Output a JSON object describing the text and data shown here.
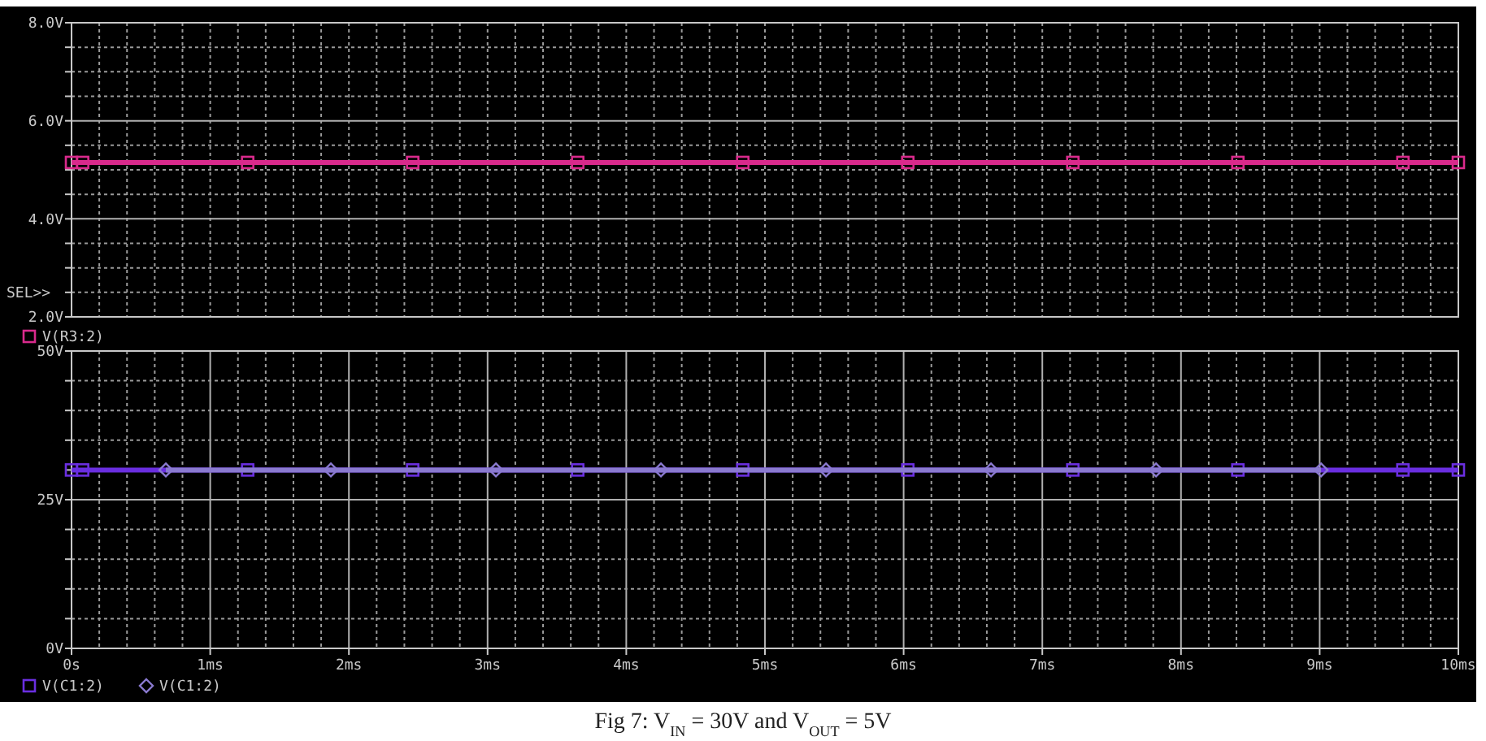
{
  "chart_data": [
    {
      "type": "line",
      "xlim": [
        0,
        10
      ],
      "ylim": [
        2,
        8
      ],
      "tick_labels": "y",
      "grid": true,
      "legend": "bottom left",
      "annotations": [
        "SEL>>"
      ],
      "xticks": [
        {
          "value": 0,
          "label": null
        },
        {
          "value": 0.2,
          "label": null
        },
        {
          "value": 0.4,
          "label": null
        },
        {
          "value": 0.6,
          "label": null
        },
        {
          "value": 0.8,
          "label": null
        },
        {
          "value": 1,
          "label": null
        },
        {
          "value": 1.2,
          "label": null
        },
        {
          "value": 1.4,
          "label": null
        },
        {
          "value": 1.6,
          "label": null
        },
        {
          "value": 1.8,
          "label": null
        },
        {
          "value": 2,
          "label": null
        },
        {
          "value": 2.2,
          "label": null
        },
        {
          "value": 2.4,
          "label": null
        },
        {
          "value": 2.6,
          "label": null
        },
        {
          "value": 2.8,
          "label": null
        },
        {
          "value": 3,
          "label": null
        },
        {
          "value": 3.2,
          "label": null
        },
        {
          "value": 3.4,
          "label": null
        },
        {
          "value": 3.6,
          "label": null
        },
        {
          "value": 3.8,
          "label": null
        },
        {
          "value": 4,
          "label": null
        },
        {
          "value": 4.2,
          "label": null
        },
        {
          "value": 4.4,
          "label": null
        },
        {
          "value": 4.6,
          "label": null
        },
        {
          "value": 4.8,
          "label": null
        },
        {
          "value": 5,
          "label": null
        },
        {
          "value": 5.2,
          "label": null
        },
        {
          "value": 5.4,
          "label": null
        },
        {
          "value": 5.6,
          "label": null
        },
        {
          "value": 5.8,
          "label": null
        },
        {
          "value": 6,
          "label": null
        },
        {
          "value": 6.2,
          "label": null
        },
        {
          "value": 6.4,
          "label": null
        },
        {
          "value": 6.6,
          "label": null
        },
        {
          "value": 6.8,
          "label": null
        },
        {
          "value": 7,
          "label": null
        },
        {
          "value": 7.2,
          "label": null
        },
        {
          "value": 7.4,
          "label": null
        },
        {
          "value": 7.6,
          "label": null
        },
        {
          "value": 7.8,
          "label": null
        },
        {
          "value": 8,
          "label": null
        },
        {
          "value": 8.2,
          "label": null
        },
        {
          "value": 8.4,
          "label": null
        },
        {
          "value": 8.6,
          "label": null
        },
        {
          "value": 8.8,
          "label": null
        },
        {
          "value": 9,
          "label": null
        },
        {
          "value": 9.2,
          "label": null
        },
        {
          "value": 9.4,
          "label": null
        },
        {
          "value": 9.6,
          "label": null
        },
        {
          "value": 9.8,
          "label": null
        },
        {
          "value": 10,
          "label": null
        }
      ],
      "yticks": [
        {
          "value": 2,
          "label": "2.0V"
        },
        {
          "value": 2.5,
          "label": null
        },
        {
          "value": 3,
          "label": null
        },
        {
          "value": 3.5,
          "label": null
        },
        {
          "value": 4,
          "label": "4.0V"
        },
        {
          "value": 4.5,
          "label": null
        },
        {
          "value": 5,
          "label": null
        },
        {
          "value": 5.5,
          "label": null
        },
        {
          "value": 6,
          "label": "6.0V"
        },
        {
          "value": 6.5,
          "label": null
        },
        {
          "value": 7,
          "label": null
        },
        {
          "value": 7.5,
          "label": null
        },
        {
          "value": 8,
          "label": "8.0V"
        }
      ],
      "series": [
        {
          "name": "V(R3:2)",
          "color": "#d92a8c",
          "marker": "square",
          "x": [
            0,
            0.08,
            1.27,
            2.46,
            3.65,
            4.84,
            6.03,
            7.22,
            8.41,
            9.6,
            10
          ],
          "values": [
            5.15,
            5.15,
            5.15,
            5.15,
            5.15,
            5.15,
            5.15,
            5.15,
            5.15,
            5.15,
            5.15
          ]
        }
      ]
    },
    {
      "type": "line",
      "xlim": [
        0,
        10
      ],
      "ylim": [
        0,
        50
      ],
      "grid": true,
      "legend": "bottom left",
      "annotations": [
        "Fig 7: V$_{IN}$ = 30V and V$_{OUT}$ = 5V"
      ],
      "xticks": [
        {
          "value": 0,
          "label": "0s"
        },
        {
          "value": 0.2,
          "label": null
        },
        {
          "value": 0.4,
          "label": null
        },
        {
          "value": 0.6,
          "label": null
        },
        {
          "value": 0.8,
          "label": null
        },
        {
          "value": 1,
          "label": "1ms"
        },
        {
          "value": 1.2,
          "label": null
        },
        {
          "value": 1.4,
          "label": null
        },
        {
          "value": 1.6,
          "label": null
        },
        {
          "value": 1.8,
          "label": null
        },
        {
          "value": 2,
          "label": "2ms"
        },
        {
          "value": 2.2,
          "label": null
        },
        {
          "value": 2.4,
          "label": null
        },
        {
          "value": 2.6,
          "label": null
        },
        {
          "value": 2.8,
          "label": null
        },
        {
          "value": 3,
          "label": "3ms"
        },
        {
          "value": 3.2,
          "label": null
        },
        {
          "value": 3.4,
          "label": null
        },
        {
          "value": 3.6,
          "label": null
        },
        {
          "value": 3.8,
          "label": null
        },
        {
          "value": 4,
          "label": "4ms"
        },
        {
          "value": 4.2,
          "label": null
        },
        {
          "value": 4.4,
          "label": null
        },
        {
          "value": 4.6,
          "label": null
        },
        {
          "value": 4.8,
          "label": null
        },
        {
          "value": 5,
          "label": "5ms"
        },
        {
          "value": 5.2,
          "label": null
        },
        {
          "value": 5.4,
          "label": null
        },
        {
          "value": 5.6,
          "label": null
        },
        {
          "value": 5.8,
          "label": null
        },
        {
          "value": 6,
          "label": "6ms"
        },
        {
          "value": 6.2,
          "label": null
        },
        {
          "value": 6.4,
          "label": null
        },
        {
          "value": 6.6,
          "label": null
        },
        {
          "value": 6.8,
          "label": null
        },
        {
          "value": 7,
          "label": "7ms"
        },
        {
          "value": 7.2,
          "label": null
        },
        {
          "value": 7.4,
          "label": null
        },
        {
          "value": 7.6,
          "label": null
        },
        {
          "value": 7.8,
          "label": null
        },
        {
          "value": 8,
          "label": "8ms"
        },
        {
          "value": 8.2,
          "label": null
        },
        {
          "value": 8.4,
          "label": null
        },
        {
          "value": 8.6,
          "label": null
        },
        {
          "value": 8.8,
          "label": null
        },
        {
          "value": 9,
          "label": "9ms"
        },
        {
          "value": 9.2,
          "label": null
        },
        {
          "value": 9.4,
          "label": null
        },
        {
          "value": 9.6,
          "label": null
        },
        {
          "value": 9.8,
          "label": null
        },
        {
          "value": 10,
          "label": "10ms"
        }
      ],
      "yticks": [
        {
          "value": 0,
          "label": "0V"
        },
        {
          "value": 5,
          "label": null
        },
        {
          "value": 10,
          "label": null
        },
        {
          "value": 15,
          "label": null
        },
        {
          "value": 20,
          "label": null
        },
        {
          "value": 25,
          "label": "25V"
        },
        {
          "value": 30,
          "label": null
        },
        {
          "value": 35,
          "label": null
        },
        {
          "value": 40,
          "label": null
        },
        {
          "value": 45,
          "label": null
        },
        {
          "value": 50,
          "label": "50V"
        }
      ],
      "series": [
        {
          "name": "V(C1:2)",
          "color": "#6a2ee0",
          "marker": "square",
          "x": [
            0,
            0.08,
            1.27,
            2.46,
            3.65,
            4.84,
            6.03,
            7.22,
            8.41,
            9.6,
            10
          ],
          "values": [
            30,
            30,
            30,
            30,
            30,
            30,
            30,
            30,
            30,
            30,
            30
          ]
        },
        {
          "name": "V(C1:2)",
          "color": "#8a7ad0",
          "marker": "diamond",
          "x": [
            0.68,
            1.87,
            3.06,
            4.25,
            5.44,
            6.63,
            7.82,
            9.01
          ],
          "values": [
            30,
            30,
            30,
            30,
            30,
            30,
            30,
            30
          ]
        }
      ]
    }
  ]
}
